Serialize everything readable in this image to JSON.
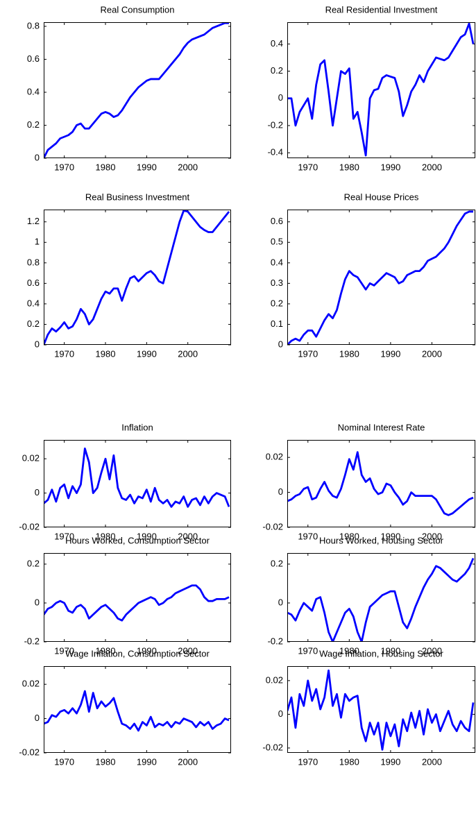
{
  "chart_data": [
    {
      "type": "line",
      "title": "Real Consumption",
      "color": "#0000ff",
      "x": [
        1965,
        1966,
        1967,
        1968,
        1969,
        1970,
        1971,
        1972,
        1973,
        1974,
        1975,
        1976,
        1977,
        1978,
        1979,
        1980,
        1981,
        1982,
        1983,
        1984,
        1985,
        1986,
        1987,
        1988,
        1989,
        1990,
        1991,
        1992,
        1993,
        1994,
        1995,
        1996,
        1997,
        1998,
        1999,
        2000,
        2001,
        2002,
        2003,
        2004,
        2005,
        2006,
        2007,
        2008,
        2009,
        2010
      ],
      "values": [
        0,
        0.05,
        0.07,
        0.09,
        0.12,
        0.13,
        0.14,
        0.16,
        0.2,
        0.21,
        0.18,
        0.18,
        0.21,
        0.24,
        0.27,
        0.28,
        0.27,
        0.25,
        0.26,
        0.29,
        0.33,
        0.37,
        0.4,
        0.43,
        0.45,
        0.47,
        0.48,
        0.48,
        0.48,
        0.51,
        0.54,
        0.57,
        0.6,
        0.63,
        0.67,
        0.7,
        0.72,
        0.73,
        0.74,
        0.75,
        0.77,
        0.79,
        0.8,
        0.81,
        0.82,
        0.82
      ],
      "xlim": [
        1965,
        2010.5
      ],
      "ylim": [
        0,
        0.825
      ],
      "xticks": [
        1970,
        1980,
        1990,
        2000
      ],
      "yticks": [
        0,
        0.2,
        0.4,
        0.6,
        0.8
      ]
    },
    {
      "type": "line",
      "title": "Real Residential Investment",
      "color": "#0000ff",
      "x": [
        1965,
        1966,
        1967,
        1968,
        1969,
        1970,
        1971,
        1972,
        1973,
        1974,
        1975,
        1976,
        1977,
        1978,
        1979,
        1980,
        1981,
        1982,
        1983,
        1984,
        1985,
        1986,
        1987,
        1988,
        1989,
        1990,
        1991,
        1992,
        1993,
        1994,
        1995,
        1996,
        1997,
        1998,
        1999,
        2000,
        2001,
        2002,
        2003,
        2004,
        2005,
        2006,
        2007,
        2008,
        2009,
        2010
      ],
      "values": [
        0,
        0,
        -0.2,
        -0.1,
        -0.05,
        0,
        -0.15,
        0.1,
        0.25,
        0.28,
        0.05,
        -0.2,
        0,
        0.2,
        0.18,
        0.22,
        -0.15,
        -0.1,
        -0.25,
        -0.42,
        0,
        0.06,
        0.07,
        0.15,
        0.17,
        0.16,
        0.15,
        0.05,
        -0.13,
        -0.05,
        0.05,
        0.1,
        0.17,
        0.12,
        0.2,
        0.25,
        0.3,
        0.29,
        0.28,
        0.3,
        0.35,
        0.4,
        0.45,
        0.47,
        0.55,
        0.4
      ],
      "xlim": [
        1965,
        2010.5
      ],
      "ylim": [
        -0.44,
        0.56
      ],
      "xticks": [
        1970,
        1980,
        1990,
        2000
      ],
      "yticks": [
        -0.4,
        -0.2,
        0,
        0.2,
        0.4
      ]
    },
    {
      "type": "line",
      "title": "Real Business Investment",
      "color": "#0000ff",
      "x": [
        1965,
        1966,
        1967,
        1968,
        1969,
        1970,
        1971,
        1972,
        1973,
        1974,
        1975,
        1976,
        1977,
        1978,
        1979,
        1980,
        1981,
        1982,
        1983,
        1984,
        1985,
        1986,
        1987,
        1988,
        1989,
        1990,
        1991,
        1992,
        1993,
        1994,
        1995,
        1996,
        1997,
        1998,
        1999,
        2000,
        2001,
        2002,
        2003,
        2004,
        2005,
        2006,
        2007,
        2008,
        2009,
        2010
      ],
      "values": [
        0,
        0.1,
        0.16,
        0.13,
        0.17,
        0.22,
        0.16,
        0.18,
        0.25,
        0.35,
        0.3,
        0.2,
        0.25,
        0.35,
        0.45,
        0.52,
        0.5,
        0.55,
        0.55,
        0.43,
        0.55,
        0.65,
        0.67,
        0.62,
        0.66,
        0.7,
        0.72,
        0.68,
        0.62,
        0.6,
        0.75,
        0.9,
        1.05,
        1.2,
        1.31,
        1.3,
        1.25,
        1.2,
        1.15,
        1.12,
        1.1,
        1.1,
        1.15,
        1.2,
        1.25,
        1.3
      ],
      "xlim": [
        1965,
        2010.5
      ],
      "ylim": [
        0,
        1.32
      ],
      "xticks": [
        1970,
        1980,
        1990,
        2000
      ],
      "yticks": [
        0,
        0.2,
        0.4,
        0.6,
        0.8,
        1,
        1.2
      ]
    },
    {
      "type": "line",
      "title": "Real House Prices",
      "color": "#0000ff",
      "x": [
        1965,
        1966,
        1967,
        1968,
        1969,
        1970,
        1971,
        1972,
        1973,
        1974,
        1975,
        1976,
        1977,
        1978,
        1979,
        1980,
        1981,
        1982,
        1983,
        1984,
        1985,
        1986,
        1987,
        1988,
        1989,
        1990,
        1991,
        1992,
        1993,
        1994,
        1995,
        1996,
        1997,
        1998,
        1999,
        2000,
        2001,
        2002,
        2003,
        2004,
        2005,
        2006,
        2007,
        2008,
        2009,
        2010
      ],
      "values": [
        0,
        0.02,
        0.03,
        0.02,
        0.05,
        0.07,
        0.07,
        0.04,
        0.08,
        0.12,
        0.15,
        0.13,
        0.17,
        0.25,
        0.32,
        0.36,
        0.34,
        0.33,
        0.3,
        0.27,
        0.3,
        0.29,
        0.31,
        0.33,
        0.35,
        0.34,
        0.33,
        0.3,
        0.31,
        0.34,
        0.35,
        0.36,
        0.36,
        0.38,
        0.41,
        0.42,
        0.43,
        0.45,
        0.47,
        0.5,
        0.54,
        0.58,
        0.61,
        0.64,
        0.65,
        0.65
      ],
      "xlim": [
        1965,
        2010.5
      ],
      "ylim": [
        0,
        0.66
      ],
      "xticks": [
        1970,
        1980,
        1990,
        2000
      ],
      "yticks": [
        0,
        0.1,
        0.2,
        0.3,
        0.4,
        0.5,
        0.6
      ]
    },
    {
      "type": "line",
      "title": "Inflation",
      "color": "#0000ff",
      "x": [
        1965,
        1966,
        1967,
        1968,
        1969,
        1970,
        1971,
        1972,
        1973,
        1974,
        1975,
        1976,
        1977,
        1978,
        1979,
        1980,
        1981,
        1982,
        1983,
        1984,
        1985,
        1986,
        1987,
        1988,
        1989,
        1990,
        1991,
        1992,
        1993,
        1994,
        1995,
        1996,
        1997,
        1998,
        1999,
        2000,
        2001,
        2002,
        2003,
        2004,
        2005,
        2006,
        2007,
        2008,
        2009,
        2010
      ],
      "values": [
        -0.006,
        -0.004,
        0.002,
        -0.005,
        0.003,
        0.005,
        -0.003,
        0.004,
        0,
        0.005,
        0.026,
        0.018,
        0,
        0.003,
        0.012,
        0.02,
        0.008,
        0.022,
        0.003,
        -0.003,
        -0.004,
        -0.001,
        -0.006,
        -0.002,
        -0.003,
        0.002,
        -0.005,
        0.003,
        -0.004,
        -0.006,
        -0.004,
        -0.008,
        -0.005,
        -0.006,
        -0.002,
        -0.008,
        -0.004,
        -0.003,
        -0.007,
        -0.002,
        -0.006,
        -0.002,
        0,
        -0.001,
        -0.002,
        -0.008
      ],
      "xlim": [
        1965,
        2010.5
      ],
      "ylim": [
        -0.02,
        0.031
      ],
      "xticks": [
        1970,
        1980,
        1990,
        2000
      ],
      "yticks": [
        -0.02,
        0,
        0.02
      ]
    },
    {
      "type": "line",
      "title": "Nominal Interest Rate",
      "color": "#0000ff",
      "x": [
        1965,
        1966,
        1967,
        1968,
        1969,
        1970,
        1971,
        1972,
        1973,
        1974,
        1975,
        1976,
        1977,
        1978,
        1979,
        1980,
        1981,
        1982,
        1983,
        1984,
        1985,
        1986,
        1987,
        1988,
        1989,
        1990,
        1991,
        1992,
        1993,
        1994,
        1995,
        1996,
        1997,
        1998,
        1999,
        2000,
        2001,
        2002,
        2003,
        2004,
        2005,
        2006,
        2007,
        2008,
        2009,
        2010
      ],
      "values": [
        -0.005,
        -0.004,
        -0.002,
        -0.001,
        0.002,
        0.003,
        -0.004,
        -0.003,
        0.002,
        0.006,
        0.001,
        -0.002,
        -0.003,
        0.002,
        0.01,
        0.019,
        0.013,
        0.023,
        0.01,
        0.006,
        0.008,
        0.002,
        -0.001,
        0,
        0.005,
        0.004,
        0,
        -0.003,
        -0.007,
        -0.005,
        0,
        -0.002,
        -0.002,
        -0.002,
        -0.002,
        -0.002,
        -0.004,
        -0.008,
        -0.012,
        -0.013,
        -0.012,
        -0.01,
        -0.008,
        -0.006,
        -0.004,
        -0.003
      ],
      "xlim": [
        1965,
        2010.5
      ],
      "ylim": [
        -0.02,
        0.03
      ],
      "xticks": [
        1970,
        1980,
        1990,
        2000
      ],
      "yticks": [
        -0.02,
        0,
        0.02
      ]
    },
    {
      "type": "line",
      "title": "Hours Worked, Consumption Sector",
      "color": "#0000ff",
      "x": [
        1965,
        1966,
        1967,
        1968,
        1969,
        1970,
        1971,
        1972,
        1973,
        1974,
        1975,
        1976,
        1977,
        1978,
        1979,
        1980,
        1981,
        1982,
        1983,
        1984,
        1985,
        1986,
        1987,
        1988,
        1989,
        1990,
        1991,
        1992,
        1993,
        1994,
        1995,
        1996,
        1997,
        1998,
        1999,
        2000,
        2001,
        2002,
        2003,
        2004,
        2005,
        2006,
        2007,
        2008,
        2009,
        2010
      ],
      "values": [
        -0.06,
        -0.03,
        -0.02,
        0,
        0.01,
        0,
        -0.04,
        -0.05,
        -0.02,
        -0.01,
        -0.03,
        -0.08,
        -0.06,
        -0.04,
        -0.02,
        -0.01,
        -0.03,
        -0.05,
        -0.08,
        -0.09,
        -0.06,
        -0.04,
        -0.02,
        0,
        0.01,
        0.02,
        0.03,
        0.02,
        -0.01,
        0,
        0.02,
        0.03,
        0.05,
        0.06,
        0.07,
        0.08,
        0.09,
        0.09,
        0.07,
        0.03,
        0.01,
        0.01,
        0.02,
        0.02,
        0.02,
        0.03
      ],
      "xlim": [
        1965,
        2010.5
      ],
      "ylim": [
        -0.2,
        0.257
      ],
      "xticks": [
        1970,
        1980,
        1990,
        2000
      ],
      "yticks": [
        -0.2,
        0,
        0.2
      ]
    },
    {
      "type": "line",
      "title": "Hours Worked, Housing Sector",
      "color": "#0000ff",
      "x": [
        1965,
        1966,
        1967,
        1968,
        1969,
        1970,
        1971,
        1972,
        1973,
        1974,
        1975,
        1976,
        1977,
        1978,
        1979,
        1980,
        1981,
        1982,
        1983,
        1984,
        1985,
        1986,
        1987,
        1988,
        1989,
        1990,
        1991,
        1992,
        1993,
        1994,
        1995,
        1996,
        1997,
        1998,
        1999,
        2000,
        2001,
        2002,
        2003,
        2004,
        2005,
        2006,
        2007,
        2008,
        2009,
        2010
      ],
      "values": [
        -0.05,
        -0.06,
        -0.09,
        -0.04,
        0,
        -0.02,
        -0.04,
        0.02,
        0.03,
        -0.05,
        -0.15,
        -0.2,
        -0.15,
        -0.1,
        -0.05,
        -0.03,
        -0.07,
        -0.15,
        -0.2,
        -0.1,
        -0.02,
        0,
        0.02,
        0.04,
        0.05,
        0.06,
        0.06,
        -0.02,
        -0.1,
        -0.13,
        -0.08,
        -0.02,
        0.03,
        0.08,
        0.12,
        0.15,
        0.19,
        0.18,
        0.16,
        0.14,
        0.12,
        0.11,
        0.13,
        0.15,
        0.18,
        0.23
      ],
      "xlim": [
        1965,
        2010.5
      ],
      "ylim": [
        -0.2,
        0.257
      ],
      "xticks": [
        1970,
        1980,
        1990,
        2000
      ],
      "yticks": [
        -0.2,
        0,
        0.2
      ]
    },
    {
      "type": "line",
      "title": "Wage Inflation, Consumption Sector",
      "color": "#0000ff",
      "x": [
        1965,
        1966,
        1967,
        1968,
        1969,
        1970,
        1971,
        1972,
        1973,
        1974,
        1975,
        1976,
        1977,
        1978,
        1979,
        1980,
        1981,
        1982,
        1983,
        1984,
        1985,
        1986,
        1987,
        1988,
        1989,
        1990,
        1991,
        1992,
        1993,
        1994,
        1995,
        1996,
        1997,
        1998,
        1999,
        2000,
        2001,
        2002,
        2003,
        2004,
        2005,
        2006,
        2007,
        2008,
        2009,
        2010
      ],
      "values": [
        -0.003,
        -0.002,
        0.002,
        0.001,
        0.004,
        0.005,
        0.003,
        0.006,
        0.003,
        0.008,
        0.016,
        0.004,
        0.015,
        0.006,
        0.01,
        0.007,
        0.009,
        0.012,
        0.004,
        -0.003,
        -0.004,
        -0.006,
        -0.003,
        -0.007,
        -0.002,
        -0.004,
        0.001,
        -0.005,
        -0.003,
        -0.004,
        -0.002,
        -0.005,
        -0.002,
        -0.003,
        0,
        -0.001,
        -0.002,
        -0.005,
        -0.002,
        -0.004,
        -0.002,
        -0.006,
        -0.004,
        -0.003,
        0,
        -0.001
      ],
      "xlim": [
        1965,
        2010.5
      ],
      "ylim": [
        -0.02,
        0.0306
      ],
      "xticks": [
        1970,
        1980,
        1990,
        2000
      ],
      "yticks": [
        -0.02,
        0,
        0.02
      ]
    },
    {
      "type": "line",
      "title": "Wage Inflation, Housing Sector",
      "color": "#0000ff",
      "x": [
        1965,
        1966,
        1967,
        1968,
        1969,
        1970,
        1971,
        1972,
        1973,
        1974,
        1975,
        1976,
        1977,
        1978,
        1979,
        1980,
        1981,
        1982,
        1983,
        1984,
        1985,
        1986,
        1987,
        1988,
        1989,
        1990,
        1991,
        1992,
        1993,
        1994,
        1995,
        1996,
        1997,
        1998,
        1999,
        2000,
        2001,
        2002,
        2003,
        2004,
        2005,
        2006,
        2007,
        2008,
        2009,
        2010
      ],
      "values": [
        0.002,
        0.01,
        -0.008,
        0.012,
        0.005,
        0.02,
        0.008,
        0.015,
        0.003,
        0.01,
        0.026,
        0.005,
        0.012,
        -0.002,
        0.012,
        0.008,
        0.01,
        0.011,
        -0.008,
        -0.016,
        -0.005,
        -0.012,
        -0.005,
        -0.021,
        -0.005,
        -0.013,
        -0.006,
        -0.019,
        -0.003,
        -0.01,
        0.001,
        -0.008,
        0.002,
        -0.012,
        0.003,
        -0.005,
        0,
        -0.01,
        -0.004,
        0.002,
        -0.006,
        -0.01,
        -0.004,
        -0.008,
        -0.01,
        0.007
      ],
      "xlim": [
        1965,
        2010.5
      ],
      "ylim": [
        -0.0229,
        0.0286
      ],
      "xticks": [
        1970,
        1980,
        1990,
        2000
      ],
      "yticks": [
        -0.02,
        0,
        0.02
      ]
    }
  ]
}
